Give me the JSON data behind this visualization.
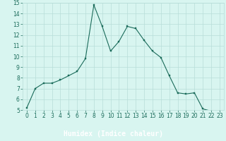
{
  "x": [
    0,
    1,
    2,
    3,
    4,
    5,
    6,
    7,
    8,
    9,
    10,
    11,
    12,
    13,
    14,
    15,
    16,
    17,
    18,
    19,
    20,
    21,
    22,
    23
  ],
  "y": [
    5.2,
    7.0,
    7.5,
    7.5,
    7.8,
    8.2,
    8.6,
    9.8,
    14.8,
    12.8,
    10.5,
    11.4,
    12.8,
    12.6,
    11.5,
    10.5,
    9.9,
    8.2,
    6.6,
    6.5,
    6.6,
    5.1,
    4.9,
    4.9
  ],
  "line_color": "#1a6b5a",
  "marker": "s",
  "marker_size": 2.0,
  "bg_color": "#d8f5f0",
  "grid_color": "#b8ddd8",
  "xlabel": "Humidex (Indice chaleur)",
  "xlim": [
    -0.5,
    23.5
  ],
  "ylim": [
    5,
    15
  ],
  "yticks": [
    5,
    6,
    7,
    8,
    9,
    10,
    11,
    12,
    13,
    14,
    15
  ],
  "xticks": [
    0,
    1,
    2,
    3,
    4,
    5,
    6,
    7,
    8,
    9,
    10,
    11,
    12,
    13,
    14,
    15,
    16,
    17,
    18,
    19,
    20,
    21,
    22,
    23
  ],
  "tick_color": "#1a6b5a",
  "label_color": "#1a1a1a",
  "xlabel_fontsize": 7,
  "tick_fontsize": 5.5,
  "footer_color": "#2a5a50",
  "footer_label_bg": "#3a6a60"
}
